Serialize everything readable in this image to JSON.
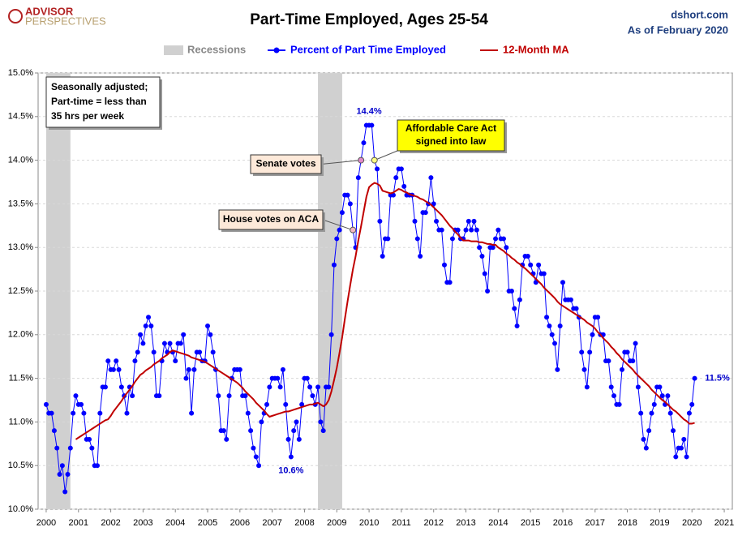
{
  "chart_data": {
    "type": "line",
    "title": "Part-Time Employed, Ages 25-54",
    "logo": {
      "line1": "ADVISOR",
      "line2": "PERSPECTIVES"
    },
    "source": "dshort.com",
    "as_of": "As of February 2020",
    "note": [
      "Seasonally adjusted;",
      "Part-time = less than",
      "35 hrs per week"
    ],
    "recession_label": "Recessions",
    "recession_color": "#d0d0d0",
    "recessions": [
      [
        "2000-01",
        "2000-10"
      ],
      [
        "2008-06",
        "2009-03"
      ]
    ],
    "xlim": [
      1999.75,
      2021.25
    ],
    "xticks": [
      2000,
      2001,
      2002,
      2003,
      2004,
      2005,
      2006,
      2007,
      2008,
      2009,
      2010,
      2011,
      2012,
      2013,
      2014,
      2015,
      2016,
      2017,
      2018,
      2019,
      2020,
      2021
    ],
    "ylim": [
      10,
      15
    ],
    "yticks": [
      {
        "value": 10,
        "label": "10.0%"
      },
      {
        "value": 10.5,
        "label": "10.5%"
      },
      {
        "value": 11,
        "label": "11.0%"
      },
      {
        "value": 11.5,
        "label": "11.5%"
      },
      {
        "value": 12,
        "label": "12.0%"
      },
      {
        "value": 12.5,
        "label": "12.5%"
      },
      {
        "value": 13,
        "label": "13.0%"
      },
      {
        "value": 13.5,
        "label": "13.5%"
      },
      {
        "value": 14,
        "label": "14.0%"
      },
      {
        "value": 14.5,
        "label": "14.5%"
      },
      {
        "value": 15,
        "label": "15.0%"
      }
    ],
    "grid": true,
    "x": [
      "2000-01",
      "2000-02",
      "2000-03",
      "2000-04",
      "2000-05",
      "2000-06",
      "2000-07",
      "2000-08",
      "2000-09",
      "2000-10",
      "2000-11",
      "2000-12",
      "2001-01",
      "2001-02",
      "2001-03",
      "2001-04",
      "2001-05",
      "2001-06",
      "2001-07",
      "2001-08",
      "2001-09",
      "2001-10",
      "2001-11",
      "2001-12",
      "2002-01",
      "2002-02",
      "2002-03",
      "2002-04",
      "2002-05",
      "2002-06",
      "2002-07",
      "2002-08",
      "2002-09",
      "2002-10",
      "2002-11",
      "2002-12",
      "2003-01",
      "2003-02",
      "2003-03",
      "2003-04",
      "2003-05",
      "2003-06",
      "2003-07",
      "2003-08",
      "2003-09",
      "2003-10",
      "2003-11",
      "2003-12",
      "2004-01",
      "2004-02",
      "2004-03",
      "2004-04",
      "2004-05",
      "2004-06",
      "2004-07",
      "2004-08",
      "2004-09",
      "2004-10",
      "2004-11",
      "2004-12",
      "2005-01",
      "2005-02",
      "2005-03",
      "2005-04",
      "2005-05",
      "2005-06",
      "2005-07",
      "2005-08",
      "2005-09",
      "2005-10",
      "2005-11",
      "2005-12",
      "2006-01",
      "2006-02",
      "2006-03",
      "2006-04",
      "2006-05",
      "2006-06",
      "2006-07",
      "2006-08",
      "2006-09",
      "2006-10",
      "2006-11",
      "2006-12",
      "2007-01",
      "2007-02",
      "2007-03",
      "2007-04",
      "2007-05",
      "2007-06",
      "2007-07",
      "2007-08",
      "2007-09",
      "2007-10",
      "2007-11",
      "2007-12",
      "2008-01",
      "2008-02",
      "2008-03",
      "2008-04",
      "2008-05",
      "2008-06",
      "2008-07",
      "2008-08",
      "2008-09",
      "2008-10",
      "2008-11",
      "2008-12",
      "2009-01",
      "2009-02",
      "2009-03",
      "2009-04",
      "2009-05",
      "2009-06",
      "2009-07",
      "2009-08",
      "2009-09",
      "2009-10",
      "2009-11",
      "2009-12",
      "2010-01",
      "2010-02",
      "2010-03",
      "2010-04",
      "2010-05",
      "2010-06",
      "2010-07",
      "2010-08",
      "2010-09",
      "2010-10",
      "2010-11",
      "2010-12",
      "2011-01",
      "2011-02",
      "2011-03",
      "2011-04",
      "2011-05",
      "2011-06",
      "2011-07",
      "2011-08",
      "2011-09",
      "2011-10",
      "2011-11",
      "2011-12",
      "2012-01",
      "2012-02",
      "2012-03",
      "2012-04",
      "2012-05",
      "2012-06",
      "2012-07",
      "2012-08",
      "2012-09",
      "2012-10",
      "2012-11",
      "2012-12",
      "2013-01",
      "2013-02",
      "2013-03",
      "2013-04",
      "2013-05",
      "2013-06",
      "2013-07",
      "2013-08",
      "2013-09",
      "2013-10",
      "2013-11",
      "2013-12",
      "2014-01",
      "2014-02",
      "2014-03",
      "2014-04",
      "2014-05",
      "2014-06",
      "2014-07",
      "2014-08",
      "2014-09",
      "2014-10",
      "2014-11",
      "2014-12",
      "2015-01",
      "2015-02",
      "2015-03",
      "2015-04",
      "2015-05",
      "2015-06",
      "2015-07",
      "2015-08",
      "2015-09",
      "2015-10",
      "2015-11",
      "2015-12",
      "2016-01",
      "2016-02",
      "2016-03",
      "2016-04",
      "2016-05",
      "2016-06",
      "2016-07",
      "2016-08",
      "2016-09",
      "2016-10",
      "2016-11",
      "2016-12",
      "2017-01",
      "2017-02",
      "2017-03",
      "2017-04",
      "2017-05",
      "2017-06",
      "2017-07",
      "2017-08",
      "2017-09",
      "2017-10",
      "2017-11",
      "2017-12",
      "2018-01",
      "2018-02",
      "2018-03",
      "2018-04",
      "2018-05",
      "2018-06",
      "2018-07",
      "2018-08",
      "2018-09",
      "2018-10",
      "2018-11",
      "2018-12",
      "2019-01",
      "2019-02",
      "2019-03",
      "2019-04",
      "2019-05",
      "2019-06",
      "2019-07",
      "2019-08",
      "2019-09",
      "2019-10",
      "2019-11",
      "2019-12",
      "2020-01",
      "2020-02"
    ],
    "series": [
      {
        "name": "Percent of Part Time Employed",
        "color": "#0000ff",
        "markers": true,
        "values": [
          11.2,
          11.1,
          11.1,
          10.9,
          10.7,
          10.4,
          10.5,
          10.2,
          10.4,
          10.7,
          11.1,
          11.3,
          11.2,
          11.2,
          11.1,
          10.8,
          10.8,
          10.7,
          10.5,
          10.5,
          11.1,
          11.4,
          11.4,
          11.7,
          11.6,
          11.6,
          11.7,
          11.6,
          11.4,
          11.3,
          11.1,
          11.4,
          11.3,
          11.7,
          11.8,
          12.0,
          11.9,
          12.1,
          12.2,
          12.1,
          11.8,
          11.3,
          11.3,
          11.7,
          11.9,
          11.8,
          11.9,
          11.8,
          11.7,
          11.9,
          11.9,
          12.0,
          11.5,
          11.6,
          11.1,
          11.6,
          11.8,
          11.8,
          11.7,
          11.7,
          12.1,
          12.0,
          11.8,
          11.6,
          11.3,
          10.9,
          10.9,
          10.8,
          11.3,
          11.5,
          11.6,
          11.6,
          11.6,
          11.3,
          11.3,
          11.1,
          10.9,
          10.7,
          10.6,
          10.5,
          11.0,
          11.1,
          11.2,
          11.4,
          11.5,
          11.5,
          11.5,
          11.4,
          11.6,
          11.2,
          10.8,
          10.6,
          10.9,
          11.0,
          10.8,
          11.2,
          11.5,
          11.5,
          11.4,
          11.3,
          11.2,
          11.4,
          11.0,
          10.9,
          11.4,
          11.4,
          12.0,
          12.8,
          13.1,
          13.2,
          13.4,
          13.6,
          13.6,
          13.5,
          13.2,
          13.0,
          13.8,
          14.0,
          14.2,
          14.4,
          14.4,
          14.4,
          14.0,
          13.9,
          13.3,
          12.9,
          13.1,
          13.1,
          13.6,
          13.6,
          13.8,
          13.9,
          13.9,
          13.7,
          13.6,
          13.6,
          13.6,
          13.3,
          13.1,
          12.9,
          13.4,
          13.4,
          13.5,
          13.8,
          13.5,
          13.3,
          13.2,
          13.2,
          12.8,
          12.6,
          12.6,
          13.1,
          13.2,
          13.2,
          13.1,
          13.1,
          13.2,
          13.3,
          13.2,
          13.3,
          13.2,
          13.0,
          12.9,
          12.7,
          12.5,
          13.0,
          13.0,
          13.1,
          13.2,
          13.1,
          13.1,
          13.0,
          12.5,
          12.5,
          12.3,
          12.1,
          12.4,
          12.8,
          12.9,
          12.9,
          12.8,
          12.7,
          12.6,
          12.8,
          12.7,
          12.7,
          12.2,
          12.1,
          12.0,
          11.9,
          11.6,
          12.1,
          12.6,
          12.4,
          12.4,
          12.4,
          12.3,
          12.3,
          12.2,
          11.8,
          11.6,
          11.4,
          11.8,
          12.0,
          12.2,
          12.2,
          12.0,
          12.0,
          11.7,
          11.7,
          11.4,
          11.3,
          11.2,
          11.2,
          11.6,
          11.8,
          11.8,
          11.7,
          11.7,
          11.9,
          11.4,
          11.1,
          10.8,
          10.7,
          10.9,
          11.1,
          11.2,
          11.4,
          11.4,
          11.3,
          11.2,
          11.3,
          11.1,
          10.9,
          10.6,
          10.7,
          10.7,
          10.8,
          10.6,
          11.1,
          11.2,
          11.5
        ]
      },
      {
        "name": "12-Month MA",
        "color": "#c00000",
        "markers": false,
        "values": [
          null,
          null,
          null,
          null,
          null,
          null,
          null,
          null,
          null,
          null,
          null,
          10.8,
          10.82,
          10.84,
          10.86,
          10.88,
          10.9,
          10.92,
          10.94,
          10.96,
          10.98,
          11.0,
          11.02,
          11.03,
          11.07,
          11.12,
          11.16,
          11.2,
          11.24,
          11.29,
          11.33,
          11.37,
          11.41,
          11.46,
          11.5,
          11.54,
          11.56,
          11.59,
          11.61,
          11.63,
          11.66,
          11.68,
          11.7,
          11.73,
          11.75,
          11.77,
          11.8,
          11.82,
          11.81,
          11.8,
          11.79,
          11.78,
          11.77,
          11.76,
          11.74,
          11.73,
          11.72,
          11.71,
          11.7,
          11.69,
          11.67,
          11.65,
          11.63,
          11.61,
          11.59,
          11.57,
          11.55,
          11.53,
          11.51,
          11.49,
          11.47,
          11.45,
          11.42,
          11.39,
          11.35,
          11.32,
          11.29,
          11.26,
          11.22,
          11.19,
          11.16,
          11.13,
          11.09,
          11.06,
          11.07,
          11.08,
          11.09,
          11.1,
          11.11,
          11.12,
          11.12,
          11.13,
          11.14,
          11.15,
          11.16,
          11.17,
          11.18,
          11.19,
          11.2,
          11.2,
          11.21,
          11.22,
          11.2,
          11.18,
          11.2,
          11.25,
          11.35,
          11.48,
          11.62,
          11.79,
          11.97,
          12.18,
          12.38,
          12.57,
          12.75,
          12.9,
          13.08,
          13.24,
          13.41,
          13.58,
          13.69,
          13.72,
          13.74,
          13.73,
          13.71,
          13.65,
          13.64,
          13.63,
          13.62,
          13.63,
          13.65,
          13.67,
          13.66,
          13.64,
          13.63,
          13.61,
          13.6,
          13.59,
          13.58,
          13.56,
          13.55,
          13.53,
          13.51,
          13.49,
          13.46,
          13.43,
          13.4,
          13.37,
          13.33,
          13.29,
          13.25,
          13.22,
          13.18,
          13.15,
          13.11,
          13.08,
          13.08,
          13.08,
          13.07,
          13.07,
          13.07,
          13.06,
          13.06,
          13.05,
          13.04,
          13.04,
          13.03,
          13.03,
          13.0,
          12.98,
          12.96,
          12.93,
          12.91,
          12.88,
          12.86,
          12.83,
          12.81,
          12.78,
          12.76,
          12.73,
          12.7,
          12.67,
          12.64,
          12.61,
          12.58,
          12.54,
          12.51,
          12.48,
          12.45,
          12.42,
          12.38,
          12.35,
          12.33,
          12.31,
          12.29,
          12.27,
          12.25,
          12.23,
          12.21,
          12.19,
          12.17,
          12.14,
          12.12,
          12.1,
          12.07,
          12.03,
          12.0,
          11.96,
          11.93,
          11.9,
          11.86,
          11.83,
          11.79,
          11.76,
          11.72,
          11.69,
          11.66,
          11.63,
          11.6,
          11.56,
          11.53,
          11.5,
          11.47,
          11.44,
          11.41,
          11.37,
          11.34,
          11.31,
          11.28,
          11.25,
          11.23,
          11.2,
          11.17,
          11.14,
          11.12,
          11.09,
          11.06,
          11.03,
          11.01,
          10.98,
          10.98,
          10.99
        ]
      }
    ],
    "point_labels": [
      {
        "text": "14.4%",
        "x": "2010-01"
      },
      {
        "text": "10.6%",
        "x": "2007-08"
      },
      {
        "text": "11.5%",
        "x": "2020-02"
      }
    ],
    "callouts": [
      {
        "text": [
          "House votes on ACA"
        ],
        "x": "2009-07",
        "color": "#fde9d9",
        "point_color": "#f4b6c2"
      },
      {
        "text": [
          "Senate votes"
        ],
        "x": "2009-10",
        "color": "#fde9d9",
        "point_color": "#e08ac8"
      },
      {
        "text": [
          "Affordable Care Act",
          "signed into law"
        ],
        "x": "2010-03",
        "color": "#ffff00",
        "point_color": "#ffff80"
      }
    ]
  }
}
